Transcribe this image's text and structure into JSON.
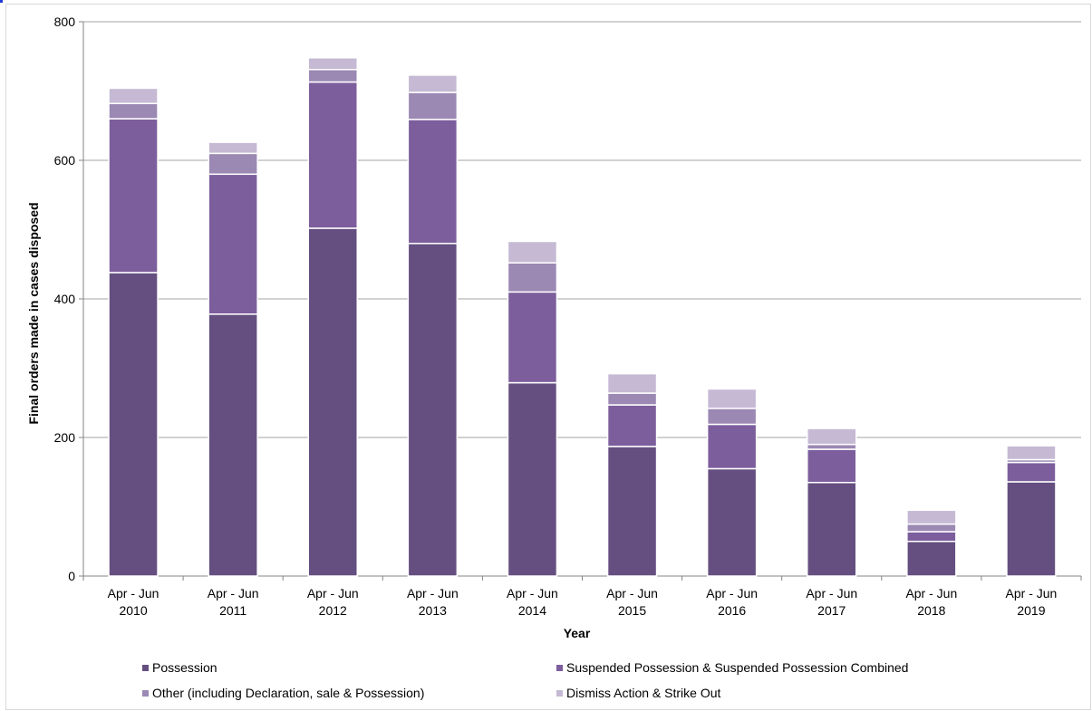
{
  "chart_data": {
    "type": "bar",
    "stacked": true,
    "categories": [
      [
        "Apr - Jun",
        "2010"
      ],
      [
        "Apr - Jun",
        "2011"
      ],
      [
        "Apr - Jun",
        "2012"
      ],
      [
        "Apr - Jun",
        "2013"
      ],
      [
        "Apr - Jun",
        "2014"
      ],
      [
        "Apr - Jun",
        "2015"
      ],
      [
        "Apr - Jun",
        "2016"
      ],
      [
        "Apr - Jun",
        "2017"
      ],
      [
        "Apr - Jun",
        "2018"
      ],
      [
        "Apr - Jun",
        "2019"
      ]
    ],
    "series": [
      {
        "name": "Possession",
        "color": "#654f80",
        "values": [
          438,
          378,
          502,
          480,
          279,
          187,
          155,
          135,
          50,
          136
        ]
      },
      {
        "name": "Suspended Possession & Suspended Possession Combined",
        "color": "#7c5e9c",
        "values": [
          222,
          202,
          211,
          179,
          131,
          60,
          64,
          48,
          14,
          28
        ]
      },
      {
        "name": "Other (including Declaration, sale & Possession)",
        "color": "#9b88b3",
        "values": [
          22,
          30,
          18,
          39,
          42,
          17,
          23,
          7,
          11,
          4
        ]
      },
      {
        "name": "Dismiss Action & Strike Out",
        "color": "#c5b9d4",
        "values": [
          22,
          16,
          17,
          25,
          31,
          28,
          28,
          23,
          20,
          20
        ]
      }
    ],
    "xlabel": "Year",
    "ylabel": "Final orders made in cases disposed",
    "ylim": [
      0,
      800
    ],
    "yticks": [
      0,
      200,
      400,
      600,
      800
    ],
    "grid": true,
    "legend_position": "bottom"
  }
}
